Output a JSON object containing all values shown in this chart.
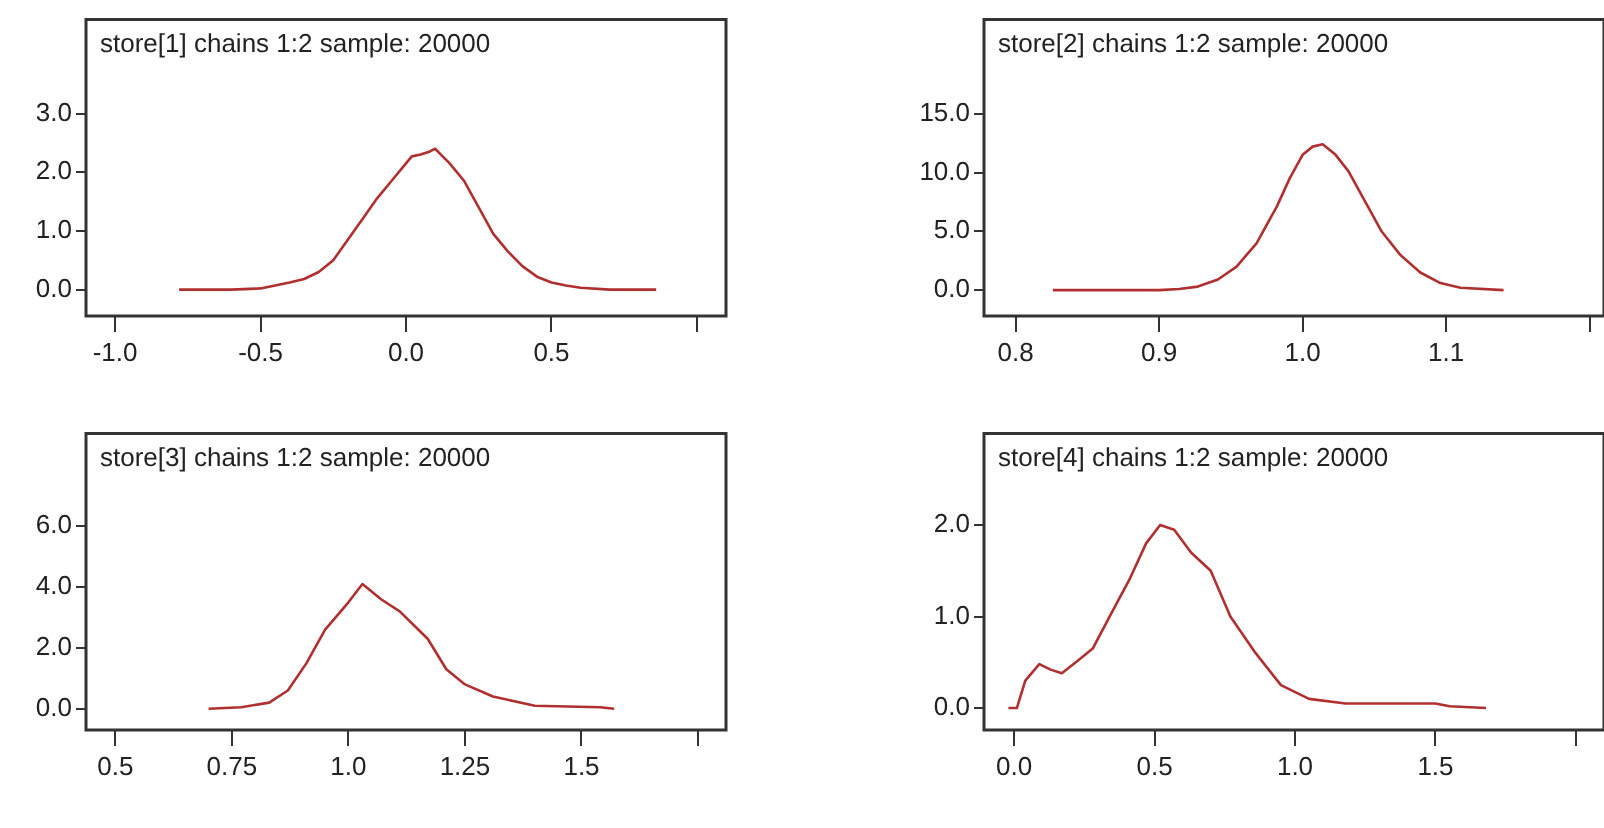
{
  "chart_data": [
    {
      "type": "line",
      "title": "store[1] chains 1:2 sample: 20000",
      "color": "#b03030",
      "marker": "none",
      "grid": false,
      "x": [
        -0.78,
        -0.6,
        -0.5,
        -0.45,
        -0.4,
        -0.35,
        -0.3,
        -0.25,
        -0.2,
        -0.15,
        -0.1,
        -0.05,
        0,
        0.02,
        0.05,
        0.08,
        0.1,
        0.12,
        0.15,
        0.2,
        0.25,
        0.3,
        0.35,
        0.4,
        0.45,
        0.5,
        0.55,
        0.6,
        0.7,
        0.86
      ],
      "values": [
        0,
        0,
        0.02,
        0.07,
        0.12,
        0.18,
        0.3,
        0.5,
        0.85,
        1.2,
        1.55,
        1.85,
        2.15,
        2.27,
        2.3,
        2.35,
        2.4,
        2.3,
        2.15,
        1.85,
        1.4,
        0.95,
        0.65,
        0.4,
        0.22,
        0.12,
        0.07,
        0.03,
        0,
        0
      ],
      "xlim": [
        -1.1,
        1.1
      ],
      "xticks": [
        {
          "value": -1,
          "label": "-1.0"
        },
        -0.5,
        {
          "value": 0,
          "label": "0.0"
        },
        0.5,
        {
          "value": 1,
          "label": null
        }
      ],
      "ylim": [
        -0.45,
        4.6
      ],
      "yticks": [
        {
          "value": 0,
          "label": "0.0"
        },
        {
          "value": 1,
          "label": "1.0"
        },
        {
          "value": 2,
          "label": "2.0"
        },
        {
          "value": 3,
          "label": "3.0"
        }
      ]
    },
    {
      "type": "line",
      "title": "store[2] chains 1:2 sample: 20000",
      "color": "#b03030",
      "marker": "none",
      "grid": false,
      "x": [
        0.826,
        0.9,
        0.914,
        0.927,
        0.941,
        0.954,
        0.968,
        0.982,
        0.991,
        1.0,
        1.007,
        1.014,
        1.023,
        1.032,
        1.041,
        1.055,
        1.068,
        1.082,
        1.096,
        1.11,
        1.14
      ],
      "values": [
        0,
        0,
        0.1,
        0.3,
        0.9,
        2.0,
        4.0,
        7.1,
        9.5,
        11.5,
        12.2,
        12.4,
        11.5,
        10.1,
        8.1,
        5.0,
        3.0,
        1.5,
        0.6,
        0.2,
        0
      ],
      "xlim": [
        0.778,
        1.21
      ],
      "xticks": [
        0.8,
        0.9,
        {
          "value": 1,
          "label": "1.0"
        },
        1.1,
        {
          "value": 1.2,
          "label": null
        }
      ],
      "ylim": [
        -2.2,
        23
      ],
      "yticks": [
        {
          "value": 0,
          "label": "0.0"
        },
        {
          "value": 5,
          "label": "5.0"
        },
        {
          "value": 10,
          "label": "10.0"
        },
        {
          "value": 15,
          "label": "15.0"
        }
      ]
    },
    {
      "type": "line",
      "title": "store[3] chains 1:2 sample: 20000",
      "color": "#b03030",
      "marker": "none",
      "grid": false,
      "x": [
        0.7,
        0.77,
        0.83,
        0.87,
        0.91,
        0.95,
        1.0,
        1.03,
        1.07,
        1.11,
        1.17,
        1.21,
        1.25,
        1.31,
        1.4,
        1.54,
        1.57
      ],
      "values": [
        0,
        0.05,
        0.2,
        0.6,
        1.5,
        2.6,
        3.5,
        4.1,
        3.6,
        3.2,
        2.3,
        1.3,
        0.8,
        0.4,
        0.1,
        0.05,
        0
      ],
      "xlim": [
        0.437,
        1.81
      ],
      "xticks": [
        0.5,
        0.75,
        {
          "value": 1,
          "label": "1.0"
        },
        1.25,
        1.5,
        {
          "value": 1.75,
          "label": null
        }
      ],
      "ylim": [
        -0.7,
        9.05
      ],
      "yticks": [
        {
          "value": 0,
          "label": "0.0"
        },
        {
          "value": 2,
          "label": "2.0"
        },
        {
          "value": 4,
          "label": "4.0"
        },
        {
          "value": 6,
          "label": "6.0"
        }
      ]
    },
    {
      "type": "line",
      "title": "store[4] chains 1:2 sample: 20000",
      "color": "#b03030",
      "marker": "none",
      "grid": false,
      "x": [
        -0.02,
        0.01,
        0.04,
        0.09,
        0.13,
        0.17,
        0.22,
        0.28,
        0.34,
        0.41,
        0.47,
        0.52,
        0.57,
        0.63,
        0.7,
        0.77,
        0.86,
        0.95,
        1.05,
        1.18,
        1.5,
        1.55,
        1.68
      ],
      "values": [
        0,
        0,
        0.3,
        0.48,
        0.42,
        0.38,
        0.5,
        0.65,
        1.0,
        1.4,
        1.8,
        2.0,
        1.95,
        1.7,
        1.5,
        1.0,
        0.6,
        0.25,
        0.1,
        0.05,
        0.05,
        0.02,
        0
      ],
      "xlim": [
        -0.107,
        2.1
      ],
      "xticks": [
        {
          "value": 0,
          "label": "0.0"
        },
        0.5,
        {
          "value": 1,
          "label": "1.0"
        },
        1.5,
        {
          "value": 2,
          "label": null
        }
      ],
      "ylim": [
        -0.24,
        3.0
      ],
      "yticks": [
        {
          "value": 0,
          "label": "0.0"
        },
        {
          "value": 1,
          "label": "1.0"
        },
        {
          "value": 2,
          "label": "2.0"
        }
      ]
    }
  ]
}
